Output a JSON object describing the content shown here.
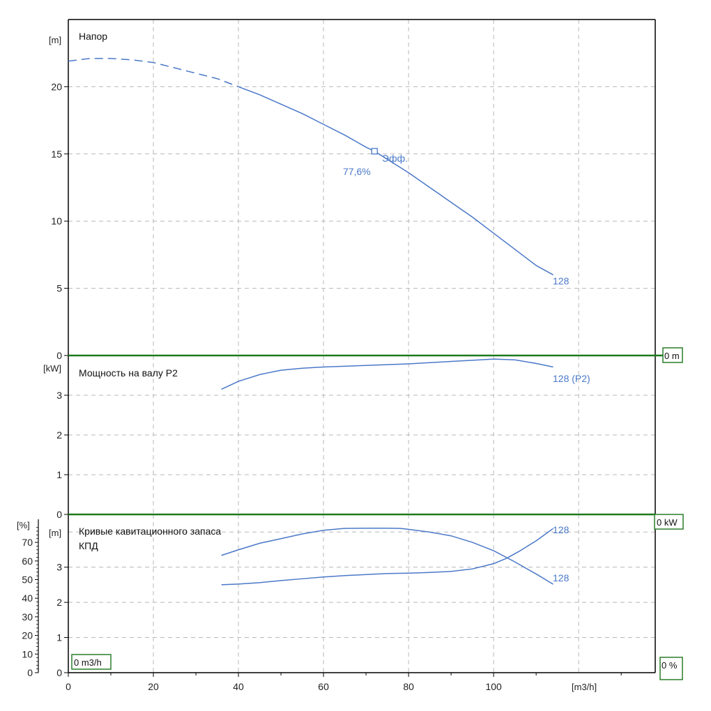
{
  "colors": {
    "curve": "#4a78c8",
    "grid": "#b8b8b8",
    "frame": "#000000",
    "separator": "#1c7a1c",
    "readout_border": "#2a7d2a"
  },
  "x_axis": {
    "label": "[m3/h]",
    "range": [
      0,
      138
    ],
    "ticks": [
      0,
      20,
      40,
      60,
      80,
      100
    ],
    "tick_labels": [
      "0",
      "20",
      "40",
      "60",
      "80",
      "100"
    ],
    "readout": "0 m3/h"
  },
  "chart_data": [
    {
      "type": "line",
      "panel": "head",
      "title": "Напор",
      "ylabel": "[m]",
      "ylim": [
        0,
        25
      ],
      "y_ticks": [
        0,
        5,
        10,
        15,
        20
      ],
      "y_tick_labels": [
        "0",
        "5",
        "10",
        "15",
        "20"
      ],
      "readout": "0 m",
      "series": [
        {
          "name": "128",
          "label": "128",
          "dashed_until": 40,
          "x": [
            0,
            5,
            10,
            15,
            20,
            25,
            30,
            35,
            40,
            45,
            50,
            55,
            60,
            65,
            70,
            72,
            75,
            80,
            85,
            90,
            95,
            100,
            105,
            110,
            114
          ],
          "y": [
            21.9,
            22.1,
            22.1,
            22.0,
            21.8,
            21.4,
            21.0,
            20.6,
            20.0,
            19.4,
            18.7,
            18.0,
            17.2,
            16.4,
            15.5,
            15.2,
            14.6,
            13.6,
            12.5,
            11.4,
            10.3,
            9.1,
            7.9,
            6.7,
            6.0
          ]
        }
      ],
      "annotations": [
        {
          "text": "Эфф.",
          "x": 72,
          "y": 15.2,
          "marker": "square"
        },
        {
          "text": "77,6%",
          "x": 72,
          "y": 15.2
        }
      ]
    },
    {
      "type": "line",
      "panel": "power",
      "title": "Мощность на валу P2",
      "ylabel": "[kW]",
      "ylim": [
        0,
        4
      ],
      "y_ticks": [
        0,
        1,
        2,
        3
      ],
      "y_tick_labels": [
        "0",
        "1",
        "2",
        "3"
      ],
      "readout": "0 kW",
      "series": [
        {
          "name": "128 (P2)",
          "label": "128 (P2)",
          "x": [
            36,
            40,
            45,
            50,
            55,
            60,
            65,
            70,
            75,
            80,
            85,
            90,
            95,
            100,
            105,
            110,
            114
          ],
          "y": [
            3.15,
            3.35,
            3.52,
            3.63,
            3.68,
            3.71,
            3.73,
            3.75,
            3.77,
            3.79,
            3.82,
            3.85,
            3.88,
            3.91,
            3.89,
            3.8,
            3.71
          ]
        }
      ]
    },
    {
      "type": "line",
      "panel": "npsh-efficiency",
      "title": "Кривые кавитационного запаса",
      "subtitle": "КПД",
      "ylabel": "[m]",
      "ylabel_secondary": "[%]",
      "ylim": [
        0,
        4.5
      ],
      "y_ticks": [
        0,
        1,
        2,
        3
      ],
      "y_tick_labels": [
        "0",
        "1",
        "2",
        "3"
      ],
      "ylim_secondary": [
        0,
        85
      ],
      "y_ticks_secondary": [
        0,
        10,
        20,
        30,
        40,
        50,
        60,
        70
      ],
      "y_tick_labels_secondary": [
        "0",
        "10",
        "20",
        "30",
        "40",
        "50",
        "60",
        "70"
      ],
      "readout_left": "0 m3/h",
      "readout_right": "0 %",
      "series": [
        {
          "name": "128 efficiency",
          "label": "128",
          "axis": "secondary",
          "x": [
            36,
            40,
            45,
            50,
            55,
            60,
            65,
            70,
            75,
            78,
            80,
            85,
            90,
            95,
            100,
            105,
            110,
            114
          ],
          "y": [
            63,
            66,
            69.5,
            72,
            74.5,
            76.5,
            77.5,
            77.6,
            77.6,
            77.5,
            77,
            75.5,
            73.5,
            70,
            65.5,
            59.5,
            53,
            47.5
          ]
        },
        {
          "name": "128 NPSH",
          "label": "128",
          "axis": "primary",
          "x": [
            36,
            40,
            45,
            50,
            55,
            60,
            65,
            70,
            75,
            80,
            85,
            90,
            95,
            100,
            103,
            106,
            110,
            114
          ],
          "y": [
            2.5,
            2.52,
            2.56,
            2.62,
            2.67,
            2.72,
            2.76,
            2.79,
            2.82,
            2.83,
            2.85,
            2.88,
            2.95,
            3.1,
            3.25,
            3.45,
            3.75,
            4.1
          ]
        }
      ]
    }
  ]
}
